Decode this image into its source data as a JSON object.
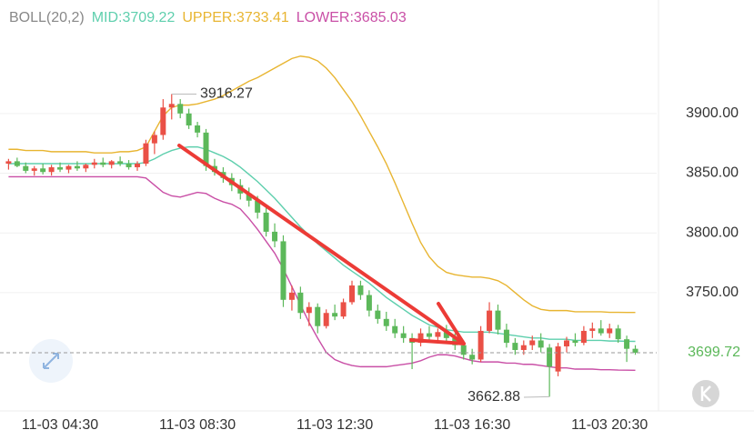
{
  "chart_data": {
    "type": "candlestick",
    "indicator": "BOLL(20,2)",
    "categories": [
      null,
      null,
      null,
      null,
      null,
      null,
      "11-03 04:30",
      null,
      null,
      null,
      null,
      null,
      null,
      null,
      null,
      null,
      null,
      null,
      null,
      null,
      null,
      null,
      "11-03 08:30",
      null,
      null,
      null,
      null,
      null,
      null,
      null,
      null,
      null,
      null,
      null,
      null,
      null,
      null,
      null,
      "11-03 12:30",
      null,
      null,
      null,
      null,
      null,
      null,
      null,
      null,
      null,
      null,
      null,
      null,
      null,
      null,
      null,
      "11-03 16:30",
      null,
      null,
      null,
      null,
      null,
      null,
      null,
      null,
      null,
      null,
      null,
      null,
      null,
      null,
      null,
      "11-03 20:30",
      null,
      null,
      null
    ],
    "open": [
      3858,
      3860,
      3856,
      3852,
      3854,
      3851,
      3855,
      3853,
      3856,
      3854,
      3857,
      3859,
      3857,
      3860,
      3858,
      3855,
      3858,
      3875,
      3882,
      3905,
      3908,
      3900,
      3890,
      3884,
      3856,
      3851,
      3846,
      3840,
      3833,
      3827,
      3817,
      3801,
      3793,
      3744,
      3750,
      3733,
      3738,
      3722,
      3733,
      3730,
      3742,
      3756,
      3748,
      3735,
      3728,
      3722,
      3716,
      3712,
      3708,
      3716,
      3713,
      3717,
      3712,
      3706,
      3698,
      3694,
      3718,
      3735,
      3719,
      3708,
      3702,
      3706,
      3710,
      3704,
      3684,
      3705,
      3710,
      3708,
      3718,
      3720,
      3716,
      3720,
      3711,
      3703
    ],
    "high": [
      3862,
      3863,
      3859,
      3856,
      3858,
      3857,
      3859,
      3857,
      3860,
      3858,
      3862,
      3863,
      3861,
      3864,
      3861,
      3860,
      3878,
      3885,
      3912,
      3916.27,
      3912,
      3904,
      3893,
      3887,
      3862,
      3855,
      3850,
      3845,
      3838,
      3831,
      3822,
      3808,
      3798,
      3756,
      3755,
      3742,
      3741,
      3736,
      3740,
      3745,
      3760,
      3760,
      3752,
      3740,
      3734,
      3728,
      3722,
      3716,
      3720,
      3722,
      3720,
      3723,
      3716,
      3710,
      3703,
      3722,
      3742,
      3740,
      3724,
      3712,
      3710,
      3714,
      3716,
      3707,
      3708,
      3713,
      3716,
      3722,
      3725,
      3727,
      3724,
      3723,
      3714,
      3706
    ],
    "low": [
      3853,
      3855,
      3850,
      3848,
      3849,
      3848,
      3851,
      3850,
      3852,
      3851,
      3854,
      3855,
      3854,
      3856,
      3853,
      3852,
      3856,
      3866,
      3878,
      3895,
      3896,
      3887,
      3880,
      3852,
      3848,
      3842,
      3835,
      3828,
      3822,
      3812,
      3797,
      3788,
      3738,
      3735,
      3728,
      3722,
      3716,
      3720,
      3727,
      3728,
      3740,
      3744,
      3730,
      3724,
      3718,
      3712,
      3708,
      3686,
      3705,
      3710,
      3708,
      3709,
      3702,
      3694,
      3690,
      3692,
      3716,
      3715,
      3704,
      3698,
      3698,
      3702,
      3700,
      3662.88,
      3680,
      3700,
      3705,
      3706,
      3712,
      3714,
      3712,
      3708,
      3692,
      3698
    ],
    "close": [
      3860,
      3856,
      3852,
      3854,
      3851,
      3855,
      3853,
      3856,
      3854,
      3857,
      3859,
      3857,
      3860,
      3858,
      3855,
      3858,
      3875,
      3882,
      3905,
      3908,
      3900,
      3890,
      3884,
      3856,
      3851,
      3846,
      3840,
      3833,
      3827,
      3817,
      3801,
      3793,
      3744,
      3750,
      3733,
      3738,
      3722,
      3733,
      3730,
      3742,
      3756,
      3748,
      3735,
      3728,
      3722,
      3716,
      3712,
      3708,
      3716,
      3713,
      3717,
      3712,
      3706,
      3698,
      3694,
      3718,
      3735,
      3719,
      3708,
      3702,
      3706,
      3710,
      3704,
      3688,
      3705,
      3710,
      3708,
      3718,
      3720,
      3716,
      3720,
      3711,
      3703,
      3699.72
    ],
    "up_color": "#ea5046",
    "down_color": "#5cb85a",
    "series": [
      {
        "name": "MID:",
        "color": "#5ecfad",
        "values": [
          3858,
          3858,
          3858,
          3858,
          3858,
          3858,
          3858,
          3858,
          3858,
          3858,
          3858,
          3858,
          3858,
          3858,
          3858,
          3858,
          3859,
          3862,
          3866,
          3869,
          3871,
          3872,
          3872,
          3870,
          3867,
          3864,
          3860,
          3855,
          3849,
          3843,
          3836,
          3829,
          3821,
          3813,
          3805,
          3798,
          3791,
          3785,
          3779,
          3773,
          3768,
          3763,
          3758,
          3752,
          3746,
          3741,
          3736,
          3731,
          3727,
          3723,
          3721,
          3719,
          3718,
          3717,
          3717,
          3717,
          3717,
          3716,
          3715,
          3714,
          3713,
          3712,
          3712,
          3711,
          3711,
          3711,
          3710,
          3710,
          3710,
          3710,
          3709.5,
          3709.5,
          3709.3,
          3709.22
        ]
      },
      {
        "name": "UPPER:",
        "color": "#e8b531",
        "values": [
          3870,
          3870,
          3869,
          3869,
          3869,
          3868,
          3868,
          3868,
          3868,
          3868,
          3867,
          3867,
          3867,
          3868,
          3868,
          3869,
          3872,
          3885,
          3898,
          3905,
          3907,
          3907,
          3908,
          3910,
          3912,
          3915,
          3919,
          3923,
          3927,
          3930,
          3934,
          3938,
          3942,
          3946,
          3948,
          3947,
          3944,
          3938,
          3930,
          3920,
          3910,
          3898,
          3885,
          3872,
          3858,
          3842,
          3825,
          3808,
          3792,
          3780,
          3772,
          3767,
          3765,
          3764,
          3763,
          3763,
          3762,
          3760,
          3756,
          3750,
          3744,
          3739,
          3736,
          3735,
          3735,
          3735,
          3734,
          3734,
          3734,
          3734,
          3733.5,
          3733.5,
          3733.4,
          3733.41
        ]
      },
      {
        "name": "LOWER:",
        "color": "#c94fa6",
        "values": [
          3847,
          3847,
          3847,
          3847,
          3847,
          3847,
          3847,
          3847,
          3847,
          3847,
          3847,
          3847,
          3847,
          3847,
          3847,
          3847,
          3846,
          3840,
          3834,
          3831,
          3830,
          3832,
          3834,
          3833,
          3829,
          3826,
          3824,
          3820,
          3812,
          3803,
          3793,
          3783,
          3770,
          3755,
          3740,
          3725,
          3712,
          3700,
          3694,
          3691,
          3689,
          3688,
          3688,
          3688,
          3688,
          3689,
          3690,
          3691,
          3693,
          3696,
          3698,
          3698,
          3697,
          3695,
          3693,
          3692,
          3692,
          3692,
          3691,
          3691,
          3690,
          3690,
          3689,
          3688,
          3687,
          3687,
          3686,
          3686,
          3686,
          3685.5,
          3685.5,
          3685.2,
          3685.1,
          3685.03
        ]
      }
    ],
    "ylim": [
      3651,
      3995
    ],
    "yticks": [
      {
        "value": 3750,
        "label": "3750.00"
      },
      {
        "value": 3800,
        "label": "3800.00"
      },
      {
        "value": 3850,
        "label": "3850.00"
      },
      {
        "value": 3900,
        "label": "3900.00"
      }
    ],
    "grid": true
  }
}
